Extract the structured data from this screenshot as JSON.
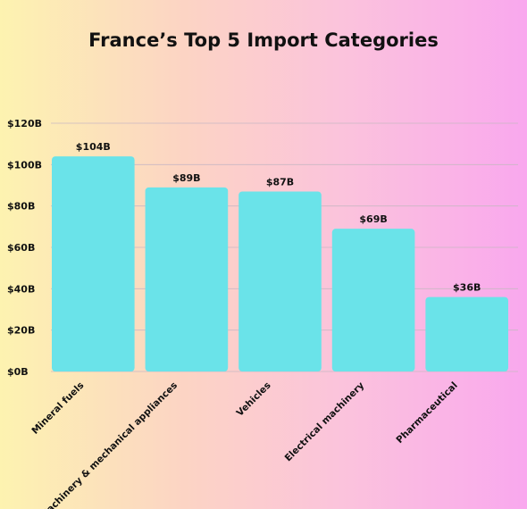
{
  "chart_data": {
    "type": "bar",
    "title": "France’s Top 5 Import Categories",
    "categories": [
      "Mineral fuels",
      "Machinery & mechanical appliances",
      "Vehicles",
      "Electrical machinery",
      "Pharmaceutical"
    ],
    "values": [
      104,
      89,
      87,
      69,
      36
    ],
    "data_labels": [
      "$104B",
      "$89B",
      "$87B",
      "$69B",
      "$36B"
    ],
    "yticks": [
      0,
      20,
      40,
      60,
      80,
      100,
      120
    ],
    "ytick_labels": [
      "$0B",
      "$20B",
      "$40B",
      "$60B",
      "$80B",
      "$100B",
      "$120B"
    ],
    "ylim": [
      0,
      120
    ],
    "grid": true,
    "bar_color": "#6ae3e9",
    "xlabel": "",
    "ylabel": ""
  }
}
